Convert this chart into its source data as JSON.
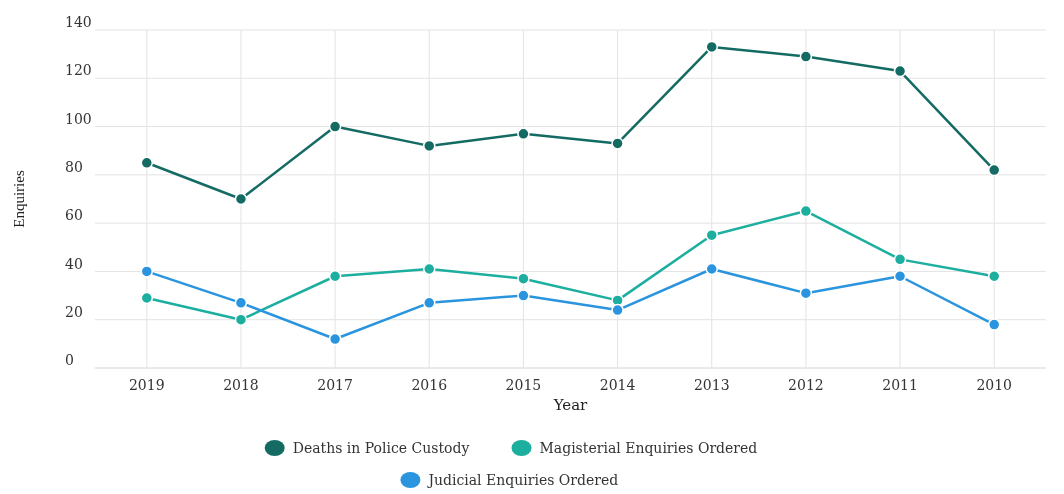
{
  "chart_data": {
    "type": "line",
    "xlabel": "Year",
    "ylabel": "Enquiries",
    "categories": [
      "2019",
      "2018",
      "2017",
      "2016",
      "2015",
      "2014",
      "2013",
      "2012",
      "2011",
      "2010"
    ],
    "series": [
      {
        "name": "Deaths in Police Custody",
        "color": "#146b63",
        "values": [
          85,
          70,
          100,
          92,
          97,
          93,
          133,
          129,
          123,
          82
        ]
      },
      {
        "name": "Magisterial Enquiries Ordered",
        "color": "#1cae9f",
        "values": [
          29,
          20,
          38,
          41,
          37,
          28,
          55,
          65,
          45,
          38
        ]
      },
      {
        "name": "Judicial Enquiries Ordered",
        "color": "#2a95de",
        "values": [
          40,
          27,
          12,
          27,
          30,
          24,
          41,
          31,
          38,
          18
        ]
      }
    ],
    "ylim": [
      0,
      140
    ],
    "yticks": [
      0,
      20,
      40,
      60,
      80,
      100,
      120,
      140
    ],
    "grid": true,
    "legend": "bottom",
    "marker": "circle",
    "line_style": "solid"
  }
}
